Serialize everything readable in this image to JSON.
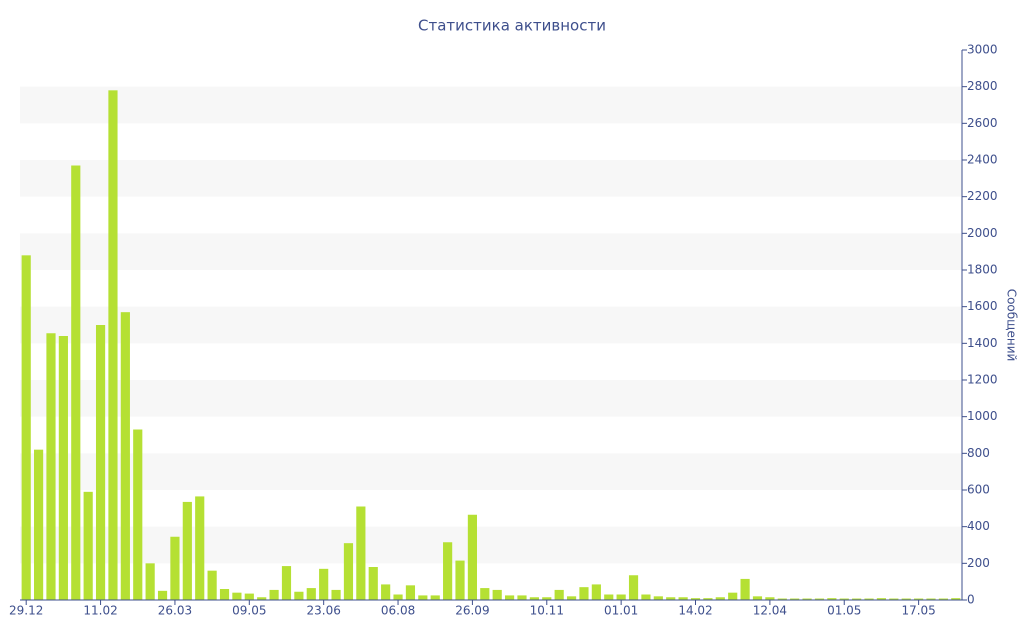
{
  "chart_data": {
    "type": "bar",
    "title": "Статистика активности",
    "y_label": "Сообщений",
    "categories": [
      "29.12",
      null,
      null,
      null,
      null,
      null,
      "11.02",
      null,
      null,
      null,
      null,
      null,
      "26.03",
      null,
      null,
      null,
      null,
      null,
      "09.05",
      null,
      null,
      null,
      null,
      null,
      "23.06",
      null,
      null,
      null,
      null,
      null,
      "06.08",
      null,
      null,
      null,
      null,
      null,
      "26.09",
      null,
      null,
      null,
      null,
      null,
      "10.11",
      null,
      null,
      null,
      null,
      null,
      "01.01",
      null,
      null,
      null,
      null,
      null,
      "14.02",
      null,
      null,
      null,
      null,
      null,
      "12.04",
      null,
      null,
      null,
      null,
      null,
      "01.05",
      null,
      null,
      null,
      null,
      null,
      "17.05",
      null,
      null,
      null
    ],
    "values": [
      1880,
      820,
      1455,
      1440,
      2370,
      590,
      1500,
      2780,
      1570,
      930,
      200,
      50,
      345,
      535,
      565,
      160,
      60,
      40,
      35,
      15,
      55,
      185,
      45,
      65,
      170,
      55,
      310,
      510,
      180,
      85,
      30,
      80,
      25,
      25,
      315,
      215,
      465,
      65,
      55,
      25,
      25,
      15,
      15,
      55,
      20,
      70,
      85,
      30,
      30,
      135,
      30,
      20,
      15,
      15,
      10,
      10,
      15,
      40,
      115,
      20,
      15,
      8,
      8,
      8,
      8,
      10,
      8,
      8,
      8,
      10,
      8,
      8,
      8,
      8,
      8,
      10
    ],
    "color": "#b5e033",
    "ylim": [
      0,
      3000
    ],
    "yticks": [
      0,
      200,
      400,
      600,
      800,
      1000,
      1200,
      1400,
      1600,
      1800,
      2000,
      2200,
      2400,
      2600,
      2800,
      3000
    ],
    "grid": true
  }
}
